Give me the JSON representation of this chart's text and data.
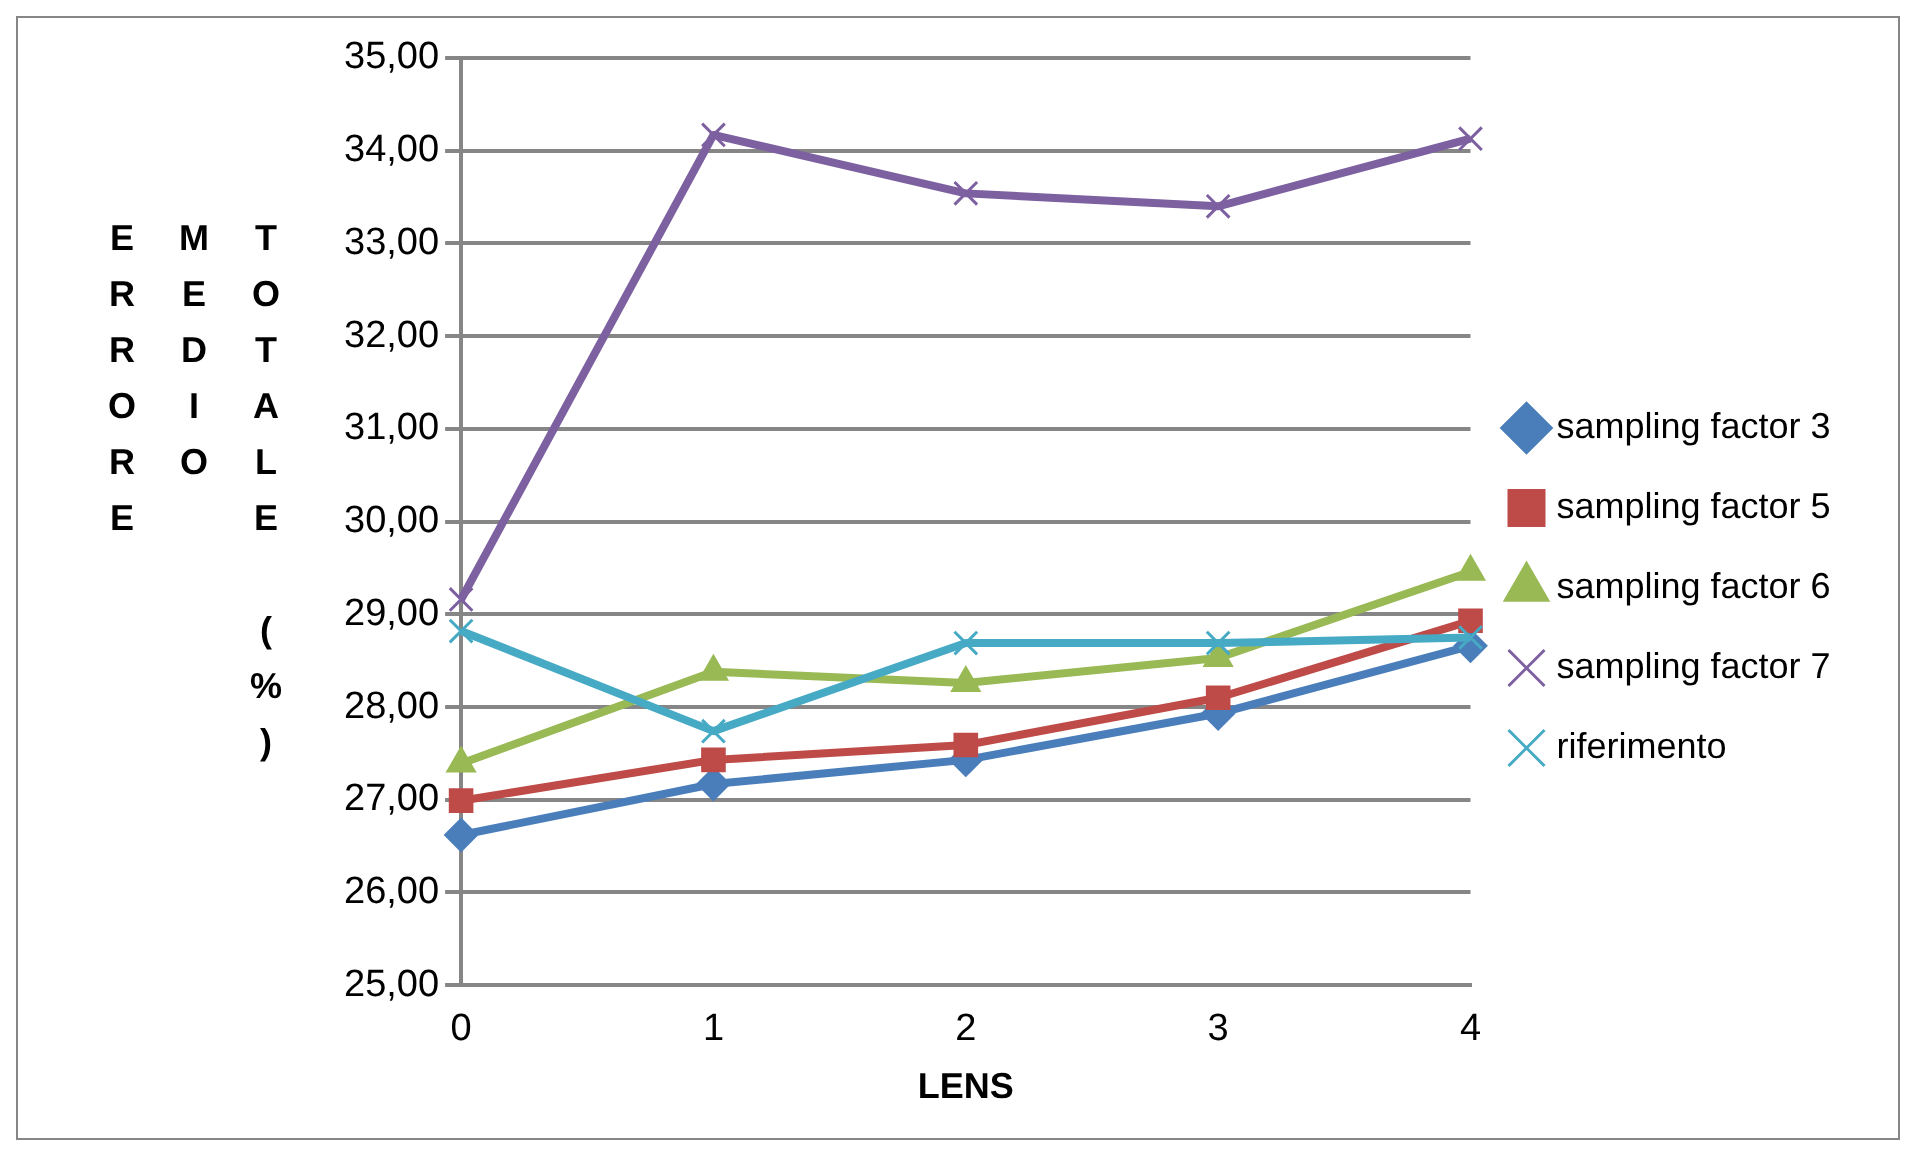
{
  "chart_data": {
    "type": "line",
    "xlabel": "LENS",
    "ylabel": "ERRORE MEDIO TOTALE (%)",
    "categories": [
      "0",
      "1",
      "2",
      "3",
      "4"
    ],
    "series": [
      {
        "name": "sampling factor 3",
        "color": "#4a7ebb",
        "marker": "diamond",
        "values": [
          26.62,
          27.17,
          27.43,
          27.93,
          28.66
        ]
      },
      {
        "name": "sampling factor 5",
        "color": "#be4b48",
        "marker": "square",
        "values": [
          26.99,
          27.43,
          27.59,
          28.1,
          28.93
        ]
      },
      {
        "name": "sampling factor 6",
        "color": "#98b954",
        "marker": "triangle",
        "values": [
          27.39,
          28.38,
          28.26,
          28.53,
          29.46
        ]
      },
      {
        "name": "sampling factor 7",
        "color": "#7d60a0",
        "marker": "cross",
        "values": [
          29.16,
          34.17,
          33.54,
          33.4,
          34.13
        ]
      },
      {
        "name": "riferimento",
        "color": "#46aac5",
        "marker": "cross",
        "values": [
          28.82,
          27.74,
          28.69,
          28.69,
          28.75
        ]
      }
    ],
    "ylim": [
      25,
      35
    ],
    "yticks": [
      {
        "value": 25,
        "label": "25,00"
      },
      {
        "value": 26,
        "label": "26,00"
      },
      {
        "value": 27,
        "label": "27,00"
      },
      {
        "value": 28,
        "label": "28,00"
      },
      {
        "value": 29,
        "label": "29,00"
      },
      {
        "value": 30,
        "label": "30,00"
      },
      {
        "value": 31,
        "label": "31,00"
      },
      {
        "value": 32,
        "label": "32,00"
      },
      {
        "value": 33,
        "label": "33,00"
      },
      {
        "value": 34,
        "label": "34,00"
      },
      {
        "value": 35,
        "label": "35,00"
      }
    ],
    "grid": "y",
    "legend": "right"
  }
}
